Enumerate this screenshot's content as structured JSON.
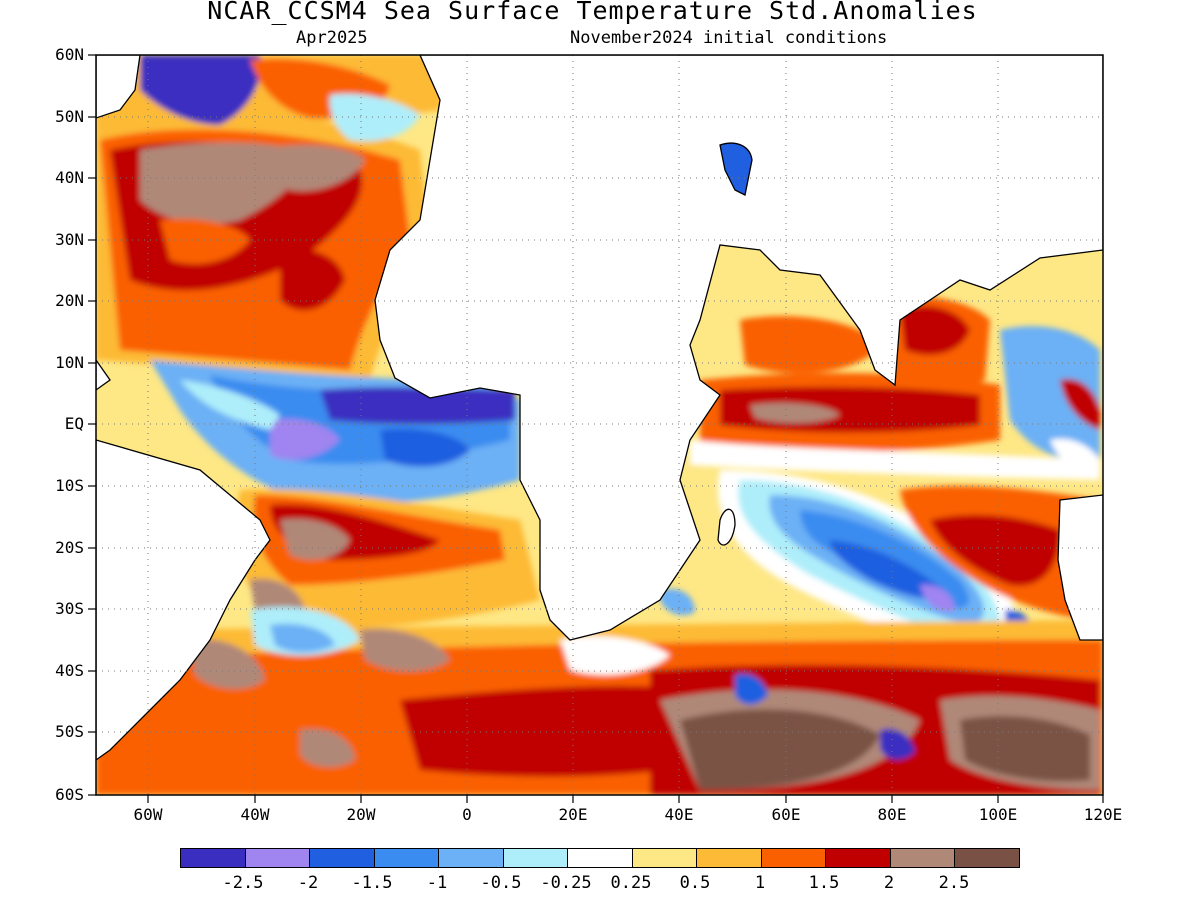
{
  "title": "NCAR_CCSM4 Sea Surface Temperature Std.Anomalies",
  "subtitle_left": "Apr2025",
  "subtitle_right": "November2024 initial conditions",
  "lat_labels": [
    "60N",
    "50N",
    "40N",
    "30N",
    "20N",
    "10N",
    "EQ",
    "10S",
    "20S",
    "30S",
    "40S",
    "50S",
    "60S"
  ],
  "lon_labels": [
    "60W",
    "40W",
    "20W",
    "0",
    "20E",
    "40E",
    "60E",
    "80E",
    "100E",
    "120E"
  ],
  "colorbar": {
    "colors": [
      "#3a2ec0",
      "#a084f0",
      "#1f5fe0",
      "#3a8cf0",
      "#6cb0f5",
      "#aeeefa",
      "#ffffff",
      "#fee785",
      "#fdba36",
      "#fa6000",
      "#c00000",
      "#b08878",
      "#7a5245"
    ],
    "labels": [
      "-2.5",
      "-2",
      "-1.5",
      "-1",
      "-0.5",
      "-0.25",
      "0.25",
      "0.5",
      "1",
      "1.5",
      "2",
      "2.5"
    ]
  }
}
